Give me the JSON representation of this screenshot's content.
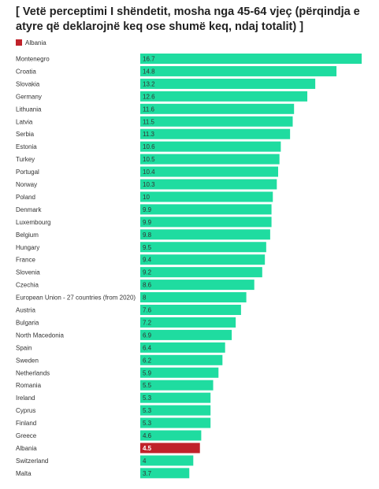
{
  "chart_data": {
    "type": "bar",
    "orientation": "horizontal",
    "title": "[ Vetë perceptimi I shëndetit, mosha nga 45-64 vjeç (përqindja e atyre që deklarojnë keq ose shumë keq, ndaj totalit) ]",
    "legend": [
      {
        "name": "Albania",
        "color": "#c0222a"
      }
    ],
    "legend_position": "top-left",
    "xlim": [
      0,
      16.7
    ],
    "grid": false,
    "bar_color": "#1fdca0",
    "highlight_color": "#c0222a",
    "highlight": "Albania",
    "categories": [
      "Montenegro",
      "Croatia",
      "Slovakia",
      "Germany",
      "Lithuania",
      "Latvia",
      "Serbia",
      "Estonia",
      "Turkey",
      "Portugal",
      "Norway",
      "Poland",
      "Denmark",
      "Luxembourg",
      "Belgium",
      "Hungary",
      "France",
      "Slovenia",
      "Czechia",
      "European Union - 27 countries (from 2020)",
      "Austria",
      "Bulgaria",
      "North Macedonia",
      "Spain",
      "Sweden",
      "Netherlands",
      "Romania",
      "Ireland",
      "Cyprus",
      "Finland",
      "Greece",
      "Albania",
      "Switzerland",
      "Malta"
    ],
    "values": [
      16.7,
      14.8,
      13.2,
      12.6,
      11.6,
      11.5,
      11.3,
      10.6,
      10.5,
      10.4,
      10.3,
      10,
      9.9,
      9.9,
      9.8,
      9.5,
      9.4,
      9.2,
      8.6,
      8,
      7.6,
      7.2,
      6.9,
      6.4,
      6.2,
      5.9,
      5.5,
      5.3,
      5.3,
      5.3,
      4.6,
      4.5,
      4,
      3.7
    ],
    "value_labels": [
      "16.7",
      "14.8",
      "13.2",
      "12.6",
      "11.6",
      "11.5",
      "11.3",
      "10.6",
      "10.5",
      "10.4",
      "10.3",
      "10",
      "9.9",
      "9.9",
      "9.8",
      "9.5",
      "9.4",
      "9.2",
      "8.6",
      "8",
      "7.6",
      "7.2",
      "6.9",
      "6.4",
      "6.2",
      "5.9",
      "5.5",
      "5.3",
      "5.3",
      "5.3",
      "4.6",
      "4.5",
      "4",
      "3.7"
    ]
  }
}
